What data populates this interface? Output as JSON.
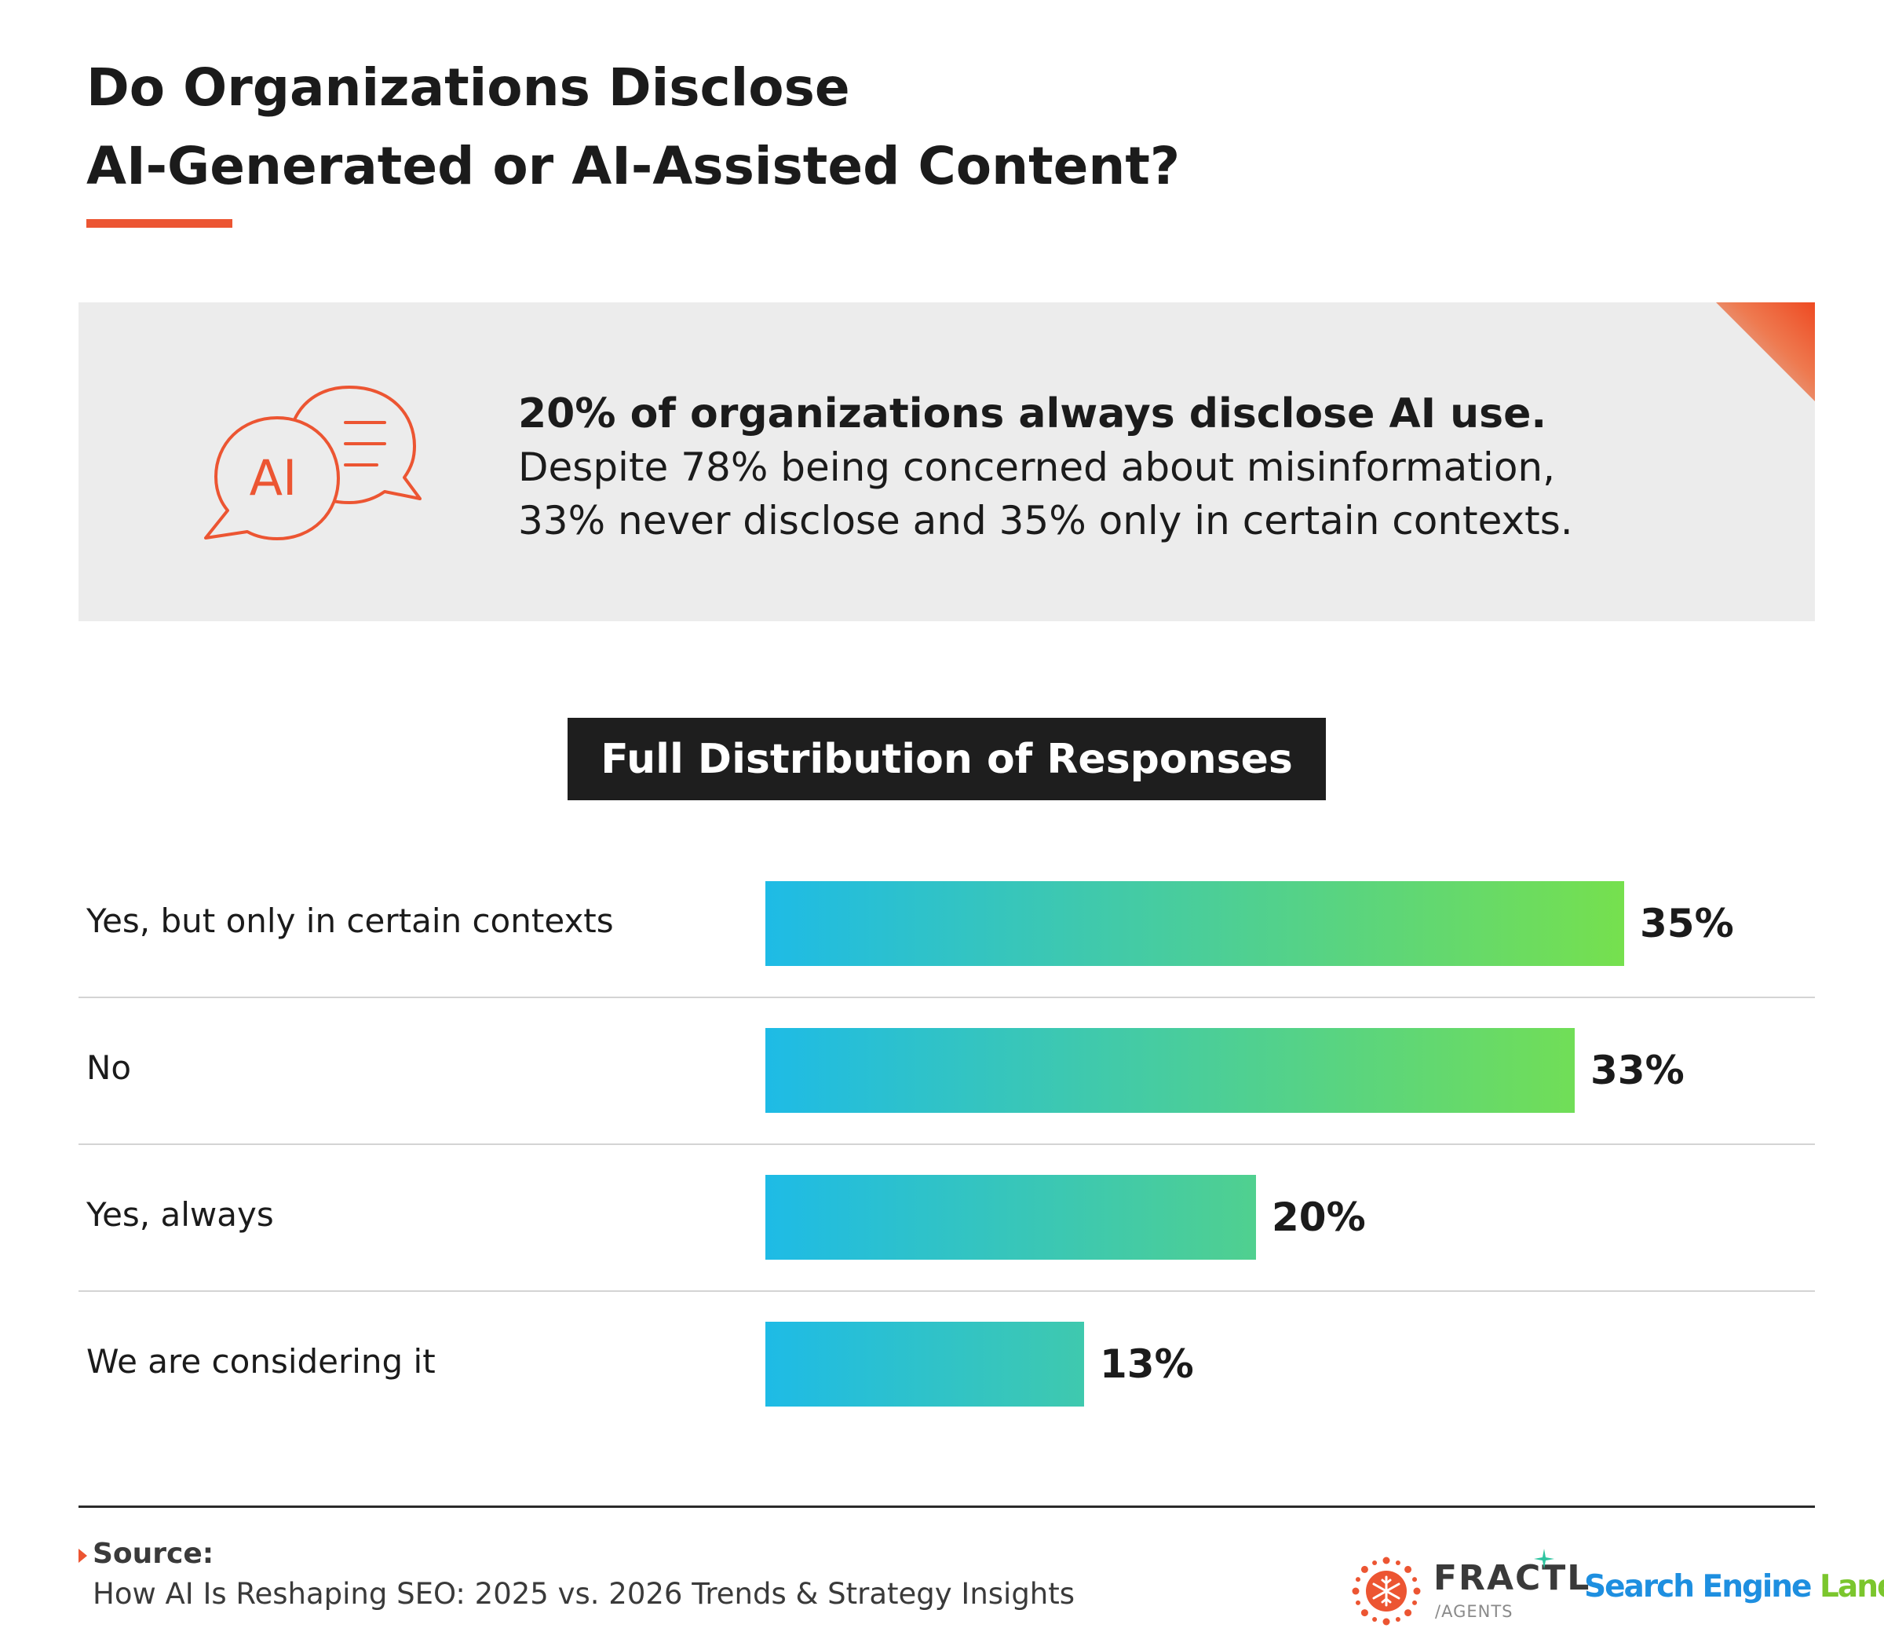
{
  "title": {
    "line1": "Do Organizations Disclose",
    "line2": "AI-Generated or AI-Assisted Content?"
  },
  "callout": {
    "icon": "ai-chat-bubbles-icon",
    "icon_text": "AI",
    "headline": "20% of organizations always disclose AI use.",
    "body_line1": "Despite 78% being concerned about misinformation,",
    "body_line2": "33% never disclose and 35% only in certain contexts."
  },
  "section_label": "Full Distribution of Responses",
  "chart_data": {
    "type": "bar",
    "orientation": "horizontal",
    "categories": [
      "Yes, but only in certain contexts",
      "No",
      "Yes, always",
      "We are considering it"
    ],
    "values": [
      35,
      33,
      20,
      13
    ],
    "value_labels": [
      "35%",
      "33%",
      "20%",
      "13%"
    ],
    "unit": "%",
    "xlim": [
      0,
      35
    ],
    "grid": false,
    "bar_gradient": [
      "#1ebbe6",
      "#76e04e"
    ]
  },
  "source": {
    "title": "Source:",
    "text": "How AI Is Reshaping SEO: 2025 vs. 2026 Trends & Strategy Insights"
  },
  "logos": {
    "fractl": {
      "name": "FRACTL",
      "sub": "/AGENTS",
      "icon": "fractl-snowflake-icon"
    },
    "sel": {
      "part1": "Search Engine ",
      "part2": "Land"
    }
  },
  "colors": {
    "accent": "#ec5532",
    "label_bg": "#1e1e1e",
    "callout_bg": "#ececec",
    "sel_blue": "#1e8fe0",
    "sel_green": "#7bc62d"
  }
}
